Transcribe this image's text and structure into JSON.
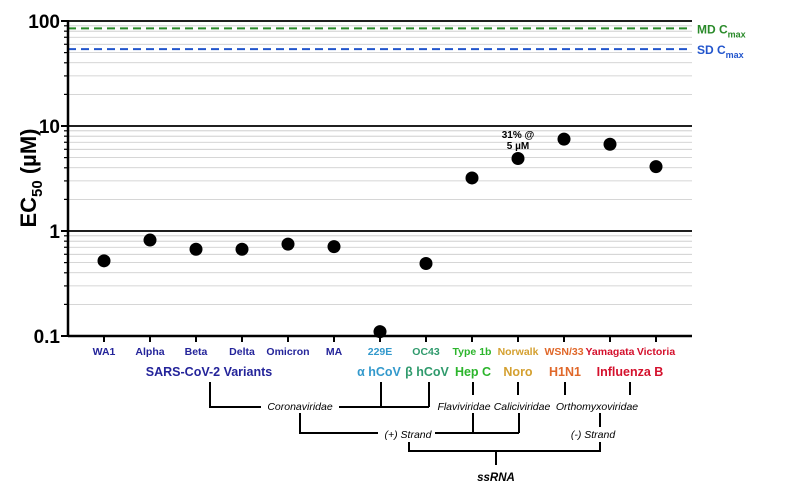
{
  "chart_data": {
    "type": "scatter",
    "title": "",
    "ylabel": "EC50 (µM)",
    "ylabel_main": "EC",
    "ylabel_sub": "50",
    "ylabel_unit": " (µM)",
    "yscale": "log",
    "ylim": [
      0.1,
      100
    ],
    "yticks": [
      {
        "value": 100,
        "label": "100"
      },
      {
        "value": 10,
        "label": "10"
      },
      {
        "value": 1,
        "label": "1"
      },
      {
        "value": 0.1,
        "label": "0.1"
      }
    ],
    "grid": true,
    "categories": [
      {
        "label": "WA1",
        "value": 0.52,
        "color": "#24249a"
      },
      {
        "label": "Alpha",
        "value": 0.82,
        "color": "#24249a"
      },
      {
        "label": "Beta",
        "value": 0.67,
        "color": "#24249a"
      },
      {
        "label": "Delta",
        "value": 0.67,
        "color": "#24249a"
      },
      {
        "label": "Omicron",
        "value": 0.75,
        "color": "#24249a"
      },
      {
        "label": "MA",
        "value": 0.71,
        "color": "#24249a"
      },
      {
        "label": "229E",
        "value": 0.11,
        "color": "#3399cc"
      },
      {
        "label": "OC43",
        "value": 0.49,
        "color": "#2f9a6c"
      },
      {
        "label": "Type 1b",
        "value": 3.2,
        "color": "#2cb52c"
      },
      {
        "label": "Norwalk",
        "value": 4.9,
        "color": "#d4a030"
      },
      {
        "label": "WSN/33",
        "value": 7.5,
        "color": "#e0682a"
      },
      {
        "label": "Yamagata",
        "value": 6.7,
        "color": "#d4102c"
      },
      {
        "label": "Victoria",
        "value": 4.1,
        "color": "#d4102c"
      }
    ],
    "reference_lines": [
      {
        "name": "MD",
        "sub": "max",
        "label_main": "MD C",
        "value": 85,
        "color": "#2a8a2a"
      },
      {
        "name": "SD",
        "sub": "max",
        "label_main": "SD C",
        "value": 54,
        "color": "#2255cc"
      }
    ],
    "annotations": [
      {
        "category": "Norwalk",
        "lines": [
          "31% @",
          "5  µM"
        ]
      }
    ],
    "groups": [
      {
        "label": "SARS-CoV-2 Variants",
        "color": "#24249a"
      },
      {
        "label": "α hCoV",
        "color": "#3399cc"
      },
      {
        "label": "β hCoV",
        "color": "#2f9a6c"
      },
      {
        "label": "Hep C",
        "color": "#2cb52c"
      },
      {
        "label": "Noro",
        "color": "#d4a030"
      },
      {
        "label": "H1N1",
        "color": "#e0682a"
      },
      {
        "label": "Influenza B",
        "color": "#d4102c"
      }
    ],
    "taxonomy": {
      "families": [
        "Coronaviridae",
        "Flaviviridae",
        "Caliciviridae",
        "Orthomyxoviridae"
      ],
      "strands": [
        "(+) Strand",
        "(-) Strand"
      ],
      "root": "ssRNA"
    }
  }
}
